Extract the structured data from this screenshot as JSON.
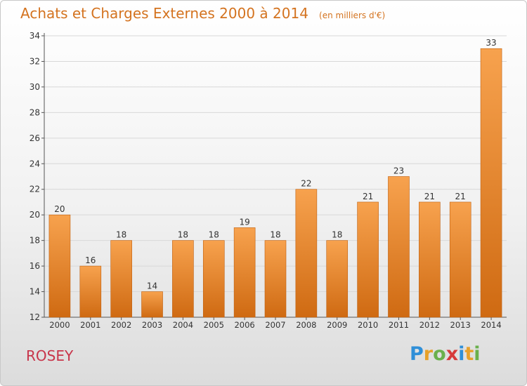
{
  "header": {
    "title": "Achats et Charges Externes 2000 à 2014",
    "subtitle": "(en milliers d'€)"
  },
  "footer": {
    "place": "ROSEY",
    "logo_letters": [
      {
        "ch": "P",
        "color": "#2f8fd8"
      },
      {
        "ch": "r",
        "color": "#e7a12a"
      },
      {
        "ch": "o",
        "color": "#6ab04c"
      },
      {
        "ch": "x",
        "color": "#d63a3a"
      },
      {
        "ch": "i",
        "color": "#2f8fd8"
      },
      {
        "ch": "t",
        "color": "#e7a12a"
      },
      {
        "ch": "i",
        "color": "#6ab04c"
      }
    ]
  },
  "chart_data": {
    "type": "bar",
    "categories": [
      "2000",
      "2001",
      "2002",
      "2003",
      "2004",
      "2005",
      "2006",
      "2007",
      "2008",
      "2009",
      "2010",
      "2011",
      "2012",
      "2013",
      "2014"
    ],
    "values": [
      20,
      16,
      18,
      14,
      18,
      18,
      19,
      18,
      22,
      18,
      21,
      23,
      21,
      21,
      33
    ],
    "value_labels": [
      "20",
      "16",
      "18",
      "14",
      "18",
      "18",
      "19",
      "18",
      "22",
      "18",
      "21",
      "23",
      "21",
      "21",
      "33"
    ],
    "ylim": [
      12,
      34
    ],
    "yticks": [
      12,
      14,
      16,
      18,
      20,
      22,
      24,
      26,
      28,
      30,
      32,
      34
    ],
    "ytick_labels": [
      "12",
      "14",
      "16",
      "18",
      "20",
      "22",
      "24",
      "26",
      "28",
      "30",
      "32",
      "34"
    ],
    "grid": true,
    "bar_color_top": "#f7a24e",
    "bar_color_bottom": "#cf6a12",
    "bar_edge": "#c0600f"
  }
}
